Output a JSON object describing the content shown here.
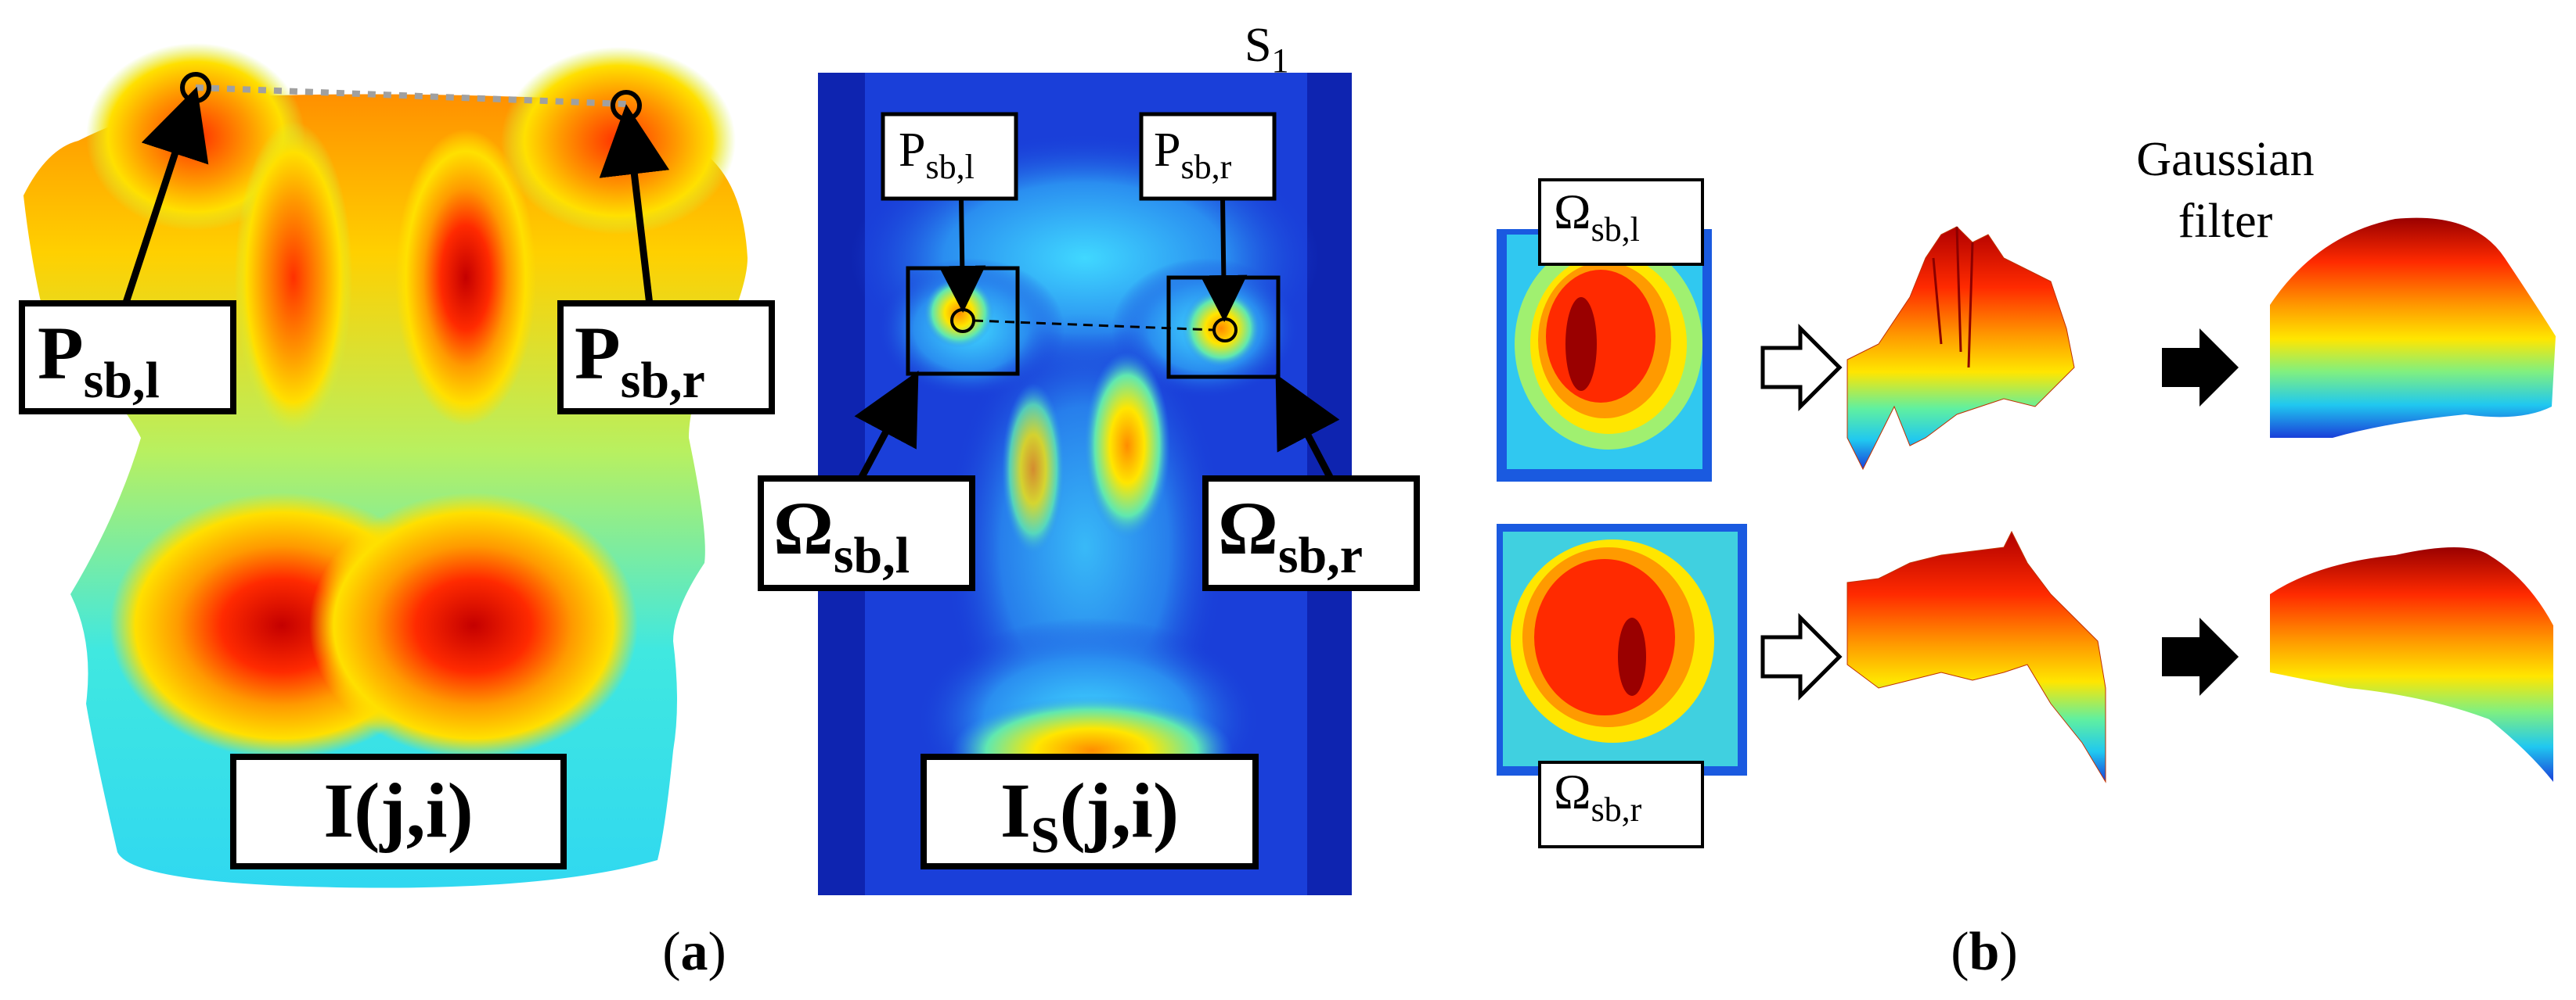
{
  "panel_a": {
    "label_p_left": {
      "main": "P",
      "sub": "sb,l"
    },
    "label_p_right": {
      "main": "P",
      "sub": "sb,r"
    },
    "label_image": "I(j,i)",
    "label_is": {
      "main": "I",
      "sub": "S",
      "rest": "(j,i)"
    },
    "slice_label": {
      "main": "S",
      "sub": "1"
    },
    "small_p_left": {
      "main": "P",
      "sub": "sb,l"
    },
    "small_p_right": {
      "main": "P",
      "sub": "sb,r"
    },
    "omega_left": {
      "main": "Ω",
      "sub": "sb,l"
    },
    "omega_right": {
      "main": "Ω",
      "sub": "sb,r"
    },
    "caption": {
      "open": "(",
      "letter": "a",
      "close": ")"
    }
  },
  "panel_b": {
    "omega_top": {
      "main": "Ω",
      "sub": "sb,l"
    },
    "omega_bottom": {
      "main": "Ω",
      "sub": "sb,r"
    },
    "filter_line1": "Gaussian",
    "filter_line2": "filter",
    "caption": {
      "open": "(",
      "letter": "b",
      "close": ")"
    }
  },
  "colors": {
    "jet_dark_red": "#8b0000",
    "jet_red": "#ff1a00",
    "jet_orange": "#ff8c00",
    "jet_yellow": "#ffe600",
    "jet_cyan": "#33e0e6",
    "jet_blue": "#1a3fd9",
    "jet_dark_blue": "#0a1a9e"
  }
}
